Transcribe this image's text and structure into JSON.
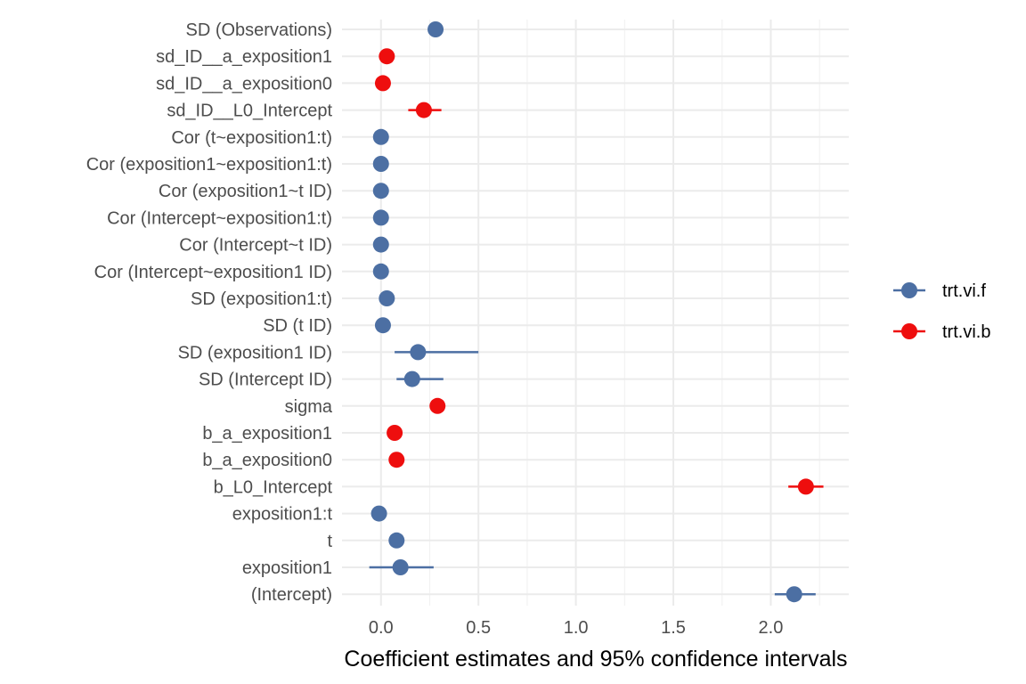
{
  "chart_data": {
    "type": "scatter",
    "xlabel": "Coefficient estimates and 95% confidence intervals",
    "xlim": [
      -0.2,
      2.4
    ],
    "xticks": [
      0.0,
      0.5,
      1.0,
      1.5,
      2.0
    ],
    "xtick_labels": [
      "0.0",
      "0.5",
      "1.0",
      "1.5",
      "2.0"
    ],
    "grid": true,
    "legend_position": "right",
    "terms": [
      "SD (Observations)",
      "sd_ID__a_exposition1",
      "sd_ID__a_exposition0",
      "sd_ID__L0_Intercept",
      "Cor (t~exposition1:t)",
      "Cor (exposition1~exposition1:t)",
      "Cor (exposition1~t ID)",
      "Cor (Intercept~exposition1:t)",
      "Cor (Intercept~t ID)",
      "Cor (Intercept~exposition1 ID)",
      "SD (exposition1:t)",
      "SD (t ID)",
      "SD (exposition1 ID)",
      "SD (Intercept ID)",
      "sigma",
      "b_a_exposition1",
      "b_a_exposition0",
      "b_L0_Intercept",
      "exposition1:t",
      "t",
      "exposition1",
      "(Intercept)"
    ],
    "series": [
      {
        "name": "trt.vi.f",
        "color": "#4c6fa3",
        "points": [
          {
            "term": "SD (Observations)",
            "estimate": 0.28,
            "low": 0.28,
            "high": 0.28
          },
          {
            "term": "Cor (t~exposition1:t)",
            "estimate": 0.0,
            "low": 0.0,
            "high": 0.0
          },
          {
            "term": "Cor (exposition1~exposition1:t)",
            "estimate": 0.0,
            "low": 0.0,
            "high": 0.0
          },
          {
            "term": "Cor (exposition1~t ID)",
            "estimate": 0.0,
            "low": 0.0,
            "high": 0.0
          },
          {
            "term": "Cor (Intercept~exposition1:t)",
            "estimate": 0.0,
            "low": 0.0,
            "high": 0.0
          },
          {
            "term": "Cor (Intercept~t ID)",
            "estimate": 0.0,
            "low": 0.0,
            "high": 0.0
          },
          {
            "term": "Cor (Intercept~exposition1 ID)",
            "estimate": 0.0,
            "low": 0.0,
            "high": 0.0
          },
          {
            "term": "SD (exposition1:t)",
            "estimate": 0.03,
            "low": 0.03,
            "high": 0.03
          },
          {
            "term": "SD (t ID)",
            "estimate": 0.01,
            "low": 0.01,
            "high": 0.01
          },
          {
            "term": "SD (exposition1 ID)",
            "estimate": 0.19,
            "low": 0.07,
            "high": 0.5
          },
          {
            "term": "SD (Intercept ID)",
            "estimate": 0.16,
            "low": 0.08,
            "high": 0.32
          },
          {
            "term": "exposition1:t",
            "estimate": -0.01,
            "low": -0.01,
            "high": -0.01
          },
          {
            "term": "t",
            "estimate": 0.08,
            "low": 0.08,
            "high": 0.08
          },
          {
            "term": "exposition1",
            "estimate": 0.1,
            "low": -0.06,
            "high": 0.27
          },
          {
            "term": "(Intercept)",
            "estimate": 2.12,
            "low": 2.02,
            "high": 2.23
          }
        ]
      },
      {
        "name": "trt.vi.b",
        "color": "#ee0e0e",
        "points": [
          {
            "term": "sd_ID__a_exposition1",
            "estimate": 0.03,
            "low": 0.03,
            "high": 0.03
          },
          {
            "term": "sd_ID__a_exposition0",
            "estimate": 0.01,
            "low": 0.01,
            "high": 0.01
          },
          {
            "term": "sd_ID__L0_Intercept",
            "estimate": 0.22,
            "low": 0.14,
            "high": 0.31
          },
          {
            "term": "sigma",
            "estimate": 0.29,
            "low": 0.29,
            "high": 0.29
          },
          {
            "term": "b_a_exposition1",
            "estimate": 0.07,
            "low": 0.07,
            "high": 0.07
          },
          {
            "term": "b_a_exposition0",
            "estimate": 0.08,
            "low": 0.08,
            "high": 0.08
          },
          {
            "term": "b_L0_Intercept",
            "estimate": 2.18,
            "low": 2.09,
            "high": 2.27
          }
        ]
      }
    ]
  }
}
